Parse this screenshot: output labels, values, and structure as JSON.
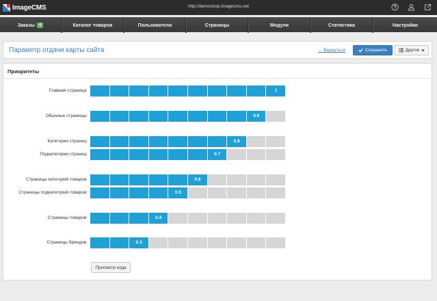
{
  "header": {
    "logo_text": "ImageCMS",
    "url": "http://demoshop.imagecms.net",
    "icons": [
      "help-icon",
      "user-icon",
      "external-link-icon"
    ]
  },
  "nav": {
    "items": [
      {
        "label": "Заказы",
        "badge": "4"
      },
      {
        "label": "Каталог товаров"
      },
      {
        "label": "Пользователи"
      },
      {
        "label": "Страницы"
      },
      {
        "label": "Модули"
      },
      {
        "label": "Статистика"
      },
      {
        "label": "Настройки"
      }
    ]
  },
  "toolbar": {
    "title": "Параметр отдачи карты сайта",
    "back_label": "← Вернуться",
    "save_label": "Сохранить",
    "other_label": "Другое"
  },
  "panel": {
    "title": "Приоритеты",
    "code_button": "Просмотр кода",
    "rows": [
      {
        "label": "Главная страница:",
        "value": "1",
        "level": 1.0
      },
      {
        "label": "Обычные страницы:",
        "value": "0.9",
        "level": 0.9
      },
      {
        "label": "Категории страниц:",
        "value": "0.8",
        "level": 0.8
      },
      {
        "label": "Подкатегории страниц:",
        "value": "0.7",
        "level": 0.7
      },
      {
        "label": "Страницы категорий товаров:",
        "value": "0.6",
        "level": 0.6
      },
      {
        "label": "Страницы подкатегорий товаров:",
        "value": "0.5",
        "level": 0.5
      },
      {
        "label": "Страницы товаров:",
        "value": "0.4",
        "level": 0.4
      },
      {
        "label": "Страницы брендов:",
        "value": "0.3",
        "level": 0.3
      }
    ]
  },
  "colors": {
    "accent": "#3a7fc2",
    "bar_on": "#1fa0d6",
    "bar_off": "#d6d6d6",
    "badge": "#5cb85c"
  }
}
